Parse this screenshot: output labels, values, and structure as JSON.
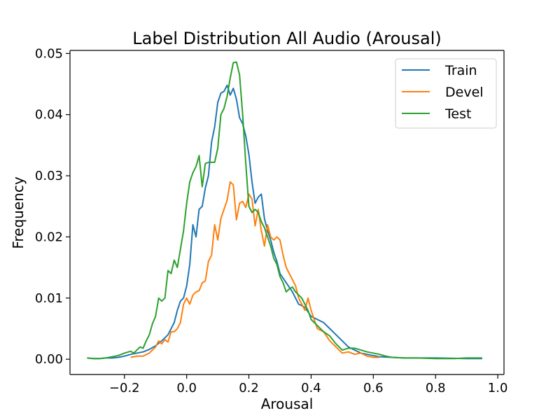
{
  "chart_data": {
    "type": "line",
    "title": "Label Distribution All Audio (Arousal)",
    "xlabel": "Arousal",
    "ylabel": "Frequency",
    "xlim": [
      -0.375,
      1.02
    ],
    "ylim": [
      -0.0025,
      0.0505
    ],
    "xticks": [
      -0.2,
      0.0,
      0.2,
      0.4,
      0.6,
      0.8,
      1.0
    ],
    "xtick_labels": [
      "−0.2",
      "0.0",
      "0.2",
      "0.4",
      "0.6",
      "0.8",
      "1.0"
    ],
    "yticks": [
      0.0,
      0.01,
      0.02,
      0.03,
      0.04,
      0.05
    ],
    "ytick_labels": [
      "0.00",
      "0.01",
      "0.02",
      "0.03",
      "0.04",
      "0.05"
    ],
    "grid": false,
    "legend": "top-right",
    "series": [
      {
        "name": "Train",
        "color": "#1f77b4",
        "points": [
          [
            -0.32,
            0.0002
          ],
          [
            -0.3,
            0.0001
          ],
          [
            -0.28,
            0.0001
          ],
          [
            -0.26,
            0.0002
          ],
          [
            -0.24,
            0.0002
          ],
          [
            -0.22,
            0.0003
          ],
          [
            -0.2,
            0.0005
          ],
          [
            -0.18,
            0.0008
          ],
          [
            -0.16,
            0.001
          ],
          [
            -0.14,
            0.0012
          ],
          [
            -0.12,
            0.0016
          ],
          [
            -0.1,
            0.0022
          ],
          [
            -0.08,
            0.003
          ],
          [
            -0.06,
            0.004
          ],
          [
            -0.04,
            0.006
          ],
          [
            -0.03,
            0.008
          ],
          [
            -0.02,
            0.0095
          ],
          [
            -0.01,
            0.01
          ],
          [
            0.0,
            0.012
          ],
          [
            0.01,
            0.0155
          ],
          [
            0.02,
            0.022
          ],
          [
            0.03,
            0.02
          ],
          [
            0.04,
            0.0245
          ],
          [
            0.05,
            0.025
          ],
          [
            0.06,
            0.028
          ],
          [
            0.07,
            0.03
          ],
          [
            0.08,
            0.0355
          ],
          [
            0.09,
            0.038
          ],
          [
            0.1,
            0.042
          ],
          [
            0.11,
            0.0435
          ],
          [
            0.12,
            0.0438
          ],
          [
            0.13,
            0.0448
          ],
          [
            0.14,
            0.0432
          ],
          [
            0.15,
            0.0443
          ],
          [
            0.16,
            0.0425
          ],
          [
            0.17,
            0.0395
          ],
          [
            0.18,
            0.0385
          ],
          [
            0.19,
            0.0365
          ],
          [
            0.2,
            0.0335
          ],
          [
            0.21,
            0.029
          ],
          [
            0.22,
            0.0255
          ],
          [
            0.23,
            0.0265
          ],
          [
            0.24,
            0.027
          ],
          [
            0.25,
            0.023
          ],
          [
            0.26,
            0.021
          ],
          [
            0.27,
            0.0195
          ],
          [
            0.28,
            0.0175
          ],
          [
            0.29,
            0.016
          ],
          [
            0.3,
            0.014
          ],
          [
            0.32,
            0.0125
          ],
          [
            0.34,
            0.011
          ],
          [
            0.36,
            0.009
          ],
          [
            0.38,
            0.0085
          ],
          [
            0.4,
            0.007
          ],
          [
            0.42,
            0.0065
          ],
          [
            0.44,
            0.006
          ],
          [
            0.46,
            0.005
          ],
          [
            0.48,
            0.004
          ],
          [
            0.5,
            0.003
          ],
          [
            0.52,
            0.002
          ],
          [
            0.54,
            0.0015
          ],
          [
            0.56,
            0.001
          ],
          [
            0.58,
            0.0008
          ],
          [
            0.6,
            0.0006
          ],
          [
            0.62,
            0.0004
          ],
          [
            0.66,
            0.0003
          ],
          [
            0.7,
            0.0002
          ],
          [
            0.8,
            0.0002
          ],
          [
            0.9,
            0.0001
          ],
          [
            0.95,
            0.0001
          ]
        ]
      },
      {
        "name": "Devel",
        "color": "#ff7f0e",
        "points": [
          [
            -0.18,
            0.0003
          ],
          [
            -0.16,
            0.0005
          ],
          [
            -0.14,
            0.0005
          ],
          [
            -0.12,
            0.001
          ],
          [
            -0.11,
            0.0015
          ],
          [
            -0.1,
            0.002
          ],
          [
            -0.09,
            0.003
          ],
          [
            -0.08,
            0.0025
          ],
          [
            -0.07,
            0.0032
          ],
          [
            -0.06,
            0.0028
          ],
          [
            -0.05,
            0.0045
          ],
          [
            -0.04,
            0.0045
          ],
          [
            -0.03,
            0.005
          ],
          [
            -0.02,
            0.006
          ],
          [
            -0.01,
            0.009
          ],
          [
            0.0,
            0.01
          ],
          [
            0.01,
            0.009
          ],
          [
            0.02,
            0.0105
          ],
          [
            0.03,
            0.011
          ],
          [
            0.04,
            0.0112
          ],
          [
            0.05,
            0.0125
          ],
          [
            0.06,
            0.0128
          ],
          [
            0.07,
            0.016
          ],
          [
            0.08,
            0.017
          ],
          [
            0.09,
            0.022
          ],
          [
            0.1,
            0.0195
          ],
          [
            0.11,
            0.023
          ],
          [
            0.12,
            0.0245
          ],
          [
            0.13,
            0.026
          ],
          [
            0.14,
            0.029
          ],
          [
            0.15,
            0.0285
          ],
          [
            0.16,
            0.0228
          ],
          [
            0.17,
            0.0255
          ],
          [
            0.18,
            0.0258
          ],
          [
            0.19,
            0.0248
          ],
          [
            0.2,
            0.027
          ],
          [
            0.21,
            0.0262
          ],
          [
            0.22,
            0.0218
          ],
          [
            0.23,
            0.0245
          ],
          [
            0.24,
            0.021
          ],
          [
            0.25,
            0.0185
          ],
          [
            0.26,
            0.022
          ],
          [
            0.27,
            0.02
          ],
          [
            0.28,
            0.0195
          ],
          [
            0.29,
            0.02
          ],
          [
            0.3,
            0.0195
          ],
          [
            0.31,
            0.017
          ],
          [
            0.32,
            0.015
          ],
          [
            0.33,
            0.014
          ],
          [
            0.34,
            0.013
          ],
          [
            0.35,
            0.012
          ],
          [
            0.36,
            0.01
          ],
          [
            0.37,
            0.009
          ],
          [
            0.38,
            0.008
          ],
          [
            0.39,
            0.01
          ],
          [
            0.4,
            0.008
          ],
          [
            0.42,
            0.005
          ],
          [
            0.44,
            0.0045
          ],
          [
            0.46,
            0.003
          ],
          [
            0.48,
            0.002
          ],
          [
            0.5,
            0.001
          ],
          [
            0.52,
            0.0012
          ],
          [
            0.54,
            0.0008
          ],
          [
            0.56,
            0.001
          ],
          [
            0.58,
            0.0005
          ],
          [
            0.6,
            0.0003
          ],
          [
            0.62,
            0.0003
          ]
        ]
      },
      {
        "name": "Test",
        "color": "#2ca02c",
        "points": [
          [
            -0.32,
            0.0002
          ],
          [
            -0.3,
            0.0001
          ],
          [
            -0.28,
            0.0001
          ],
          [
            -0.26,
            0.0002
          ],
          [
            -0.24,
            0.0004
          ],
          [
            -0.22,
            0.0006
          ],
          [
            -0.2,
            0.001
          ],
          [
            -0.18,
            0.0013
          ],
          [
            -0.17,
            0.001
          ],
          [
            -0.16,
            0.0015
          ],
          [
            -0.15,
            0.002
          ],
          [
            -0.14,
            0.0018
          ],
          [
            -0.13,
            0.003
          ],
          [
            -0.12,
            0.004
          ],
          [
            -0.11,
            0.0058
          ],
          [
            -0.1,
            0.007
          ],
          [
            -0.09,
            0.01
          ],
          [
            -0.08,
            0.0095
          ],
          [
            -0.07,
            0.01
          ],
          [
            -0.06,
            0.0145
          ],
          [
            -0.05,
            0.014
          ],
          [
            -0.04,
            0.0162
          ],
          [
            -0.03,
            0.015
          ],
          [
            -0.02,
            0.018
          ],
          [
            -0.01,
            0.021
          ],
          [
            0.0,
            0.0255
          ],
          [
            0.01,
            0.029
          ],
          [
            0.02,
            0.0305
          ],
          [
            0.03,
            0.0315
          ],
          [
            0.04,
            0.0333
          ],
          [
            0.05,
            0.0282
          ],
          [
            0.06,
            0.032
          ],
          [
            0.07,
            0.0322
          ],
          [
            0.08,
            0.0322
          ],
          [
            0.09,
            0.0322
          ],
          [
            0.1,
            0.0345
          ],
          [
            0.11,
            0.04
          ],
          [
            0.12,
            0.041
          ],
          [
            0.13,
            0.043
          ],
          [
            0.14,
            0.046
          ],
          [
            0.15,
            0.0485
          ],
          [
            0.16,
            0.0486
          ],
          [
            0.17,
            0.0465
          ],
          [
            0.18,
            0.04
          ],
          [
            0.19,
            0.032
          ],
          [
            0.2,
            0.025
          ],
          [
            0.21,
            0.024
          ],
          [
            0.22,
            0.0245
          ],
          [
            0.23,
            0.024
          ],
          [
            0.24,
            0.0225
          ],
          [
            0.25,
            0.0215
          ],
          [
            0.26,
            0.02
          ],
          [
            0.27,
            0.0185
          ],
          [
            0.28,
            0.0165
          ],
          [
            0.29,
            0.0155
          ],
          [
            0.3,
            0.0135
          ],
          [
            0.31,
            0.0125
          ],
          [
            0.32,
            0.011
          ],
          [
            0.33,
            0.0115
          ],
          [
            0.34,
            0.0118
          ],
          [
            0.35,
            0.011
          ],
          [
            0.36,
            0.0105
          ],
          [
            0.37,
            0.01
          ],
          [
            0.38,
            0.009
          ],
          [
            0.39,
            0.008
          ],
          [
            0.4,
            0.0065
          ],
          [
            0.42,
            0.0055
          ],
          [
            0.44,
            0.0045
          ],
          [
            0.46,
            0.0038
          ],
          [
            0.48,
            0.0025
          ],
          [
            0.5,
            0.0015
          ],
          [
            0.52,
            0.0018
          ],
          [
            0.54,
            0.0018
          ],
          [
            0.56,
            0.0015
          ],
          [
            0.58,
            0.0012
          ],
          [
            0.6,
            0.001
          ],
          [
            0.62,
            0.0008
          ],
          [
            0.64,
            0.0005
          ],
          [
            0.66,
            0.0003
          ],
          [
            0.7,
            0.0002
          ],
          [
            0.74,
            0.0002
          ],
          [
            0.8,
            0.0001
          ],
          [
            0.86,
            0.0001
          ],
          [
            0.9,
            0.0002
          ],
          [
            0.95,
            0.0002
          ]
        ]
      }
    ]
  }
}
